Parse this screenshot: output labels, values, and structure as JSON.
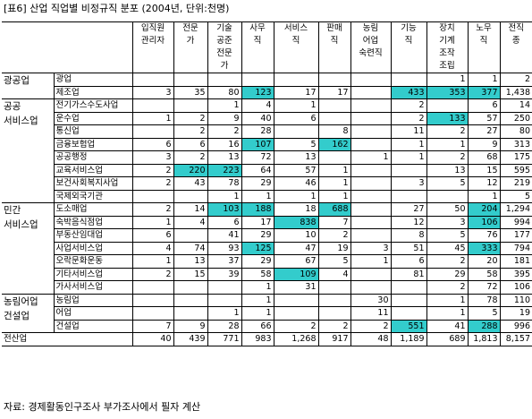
{
  "title": "[표6] 산업 직업별 비정규직 분포 (2004년, 단위:천명)",
  "source": "자료: 경제활동인구조사 부가조사에서 필자 계산",
  "columns": [
    "입직원\n관리자",
    "전문\n가",
    "기술\n공준\n전문\n가",
    "사무\n직",
    "서비스\n직",
    "판매\n직",
    "농림\n어업\n숙련직",
    "기능\n직",
    "장치\n기계\n조작\n조립",
    "노무\n직",
    "전직\n종"
  ],
  "highlight_color": "#33cccc",
  "groups": [
    {
      "name": "광공업",
      "rows": [
        {
          "label": "광업",
          "values": [
            "",
            "",
            "",
            "",
            "",
            "",
            "",
            "",
            "1",
            "1",
            "2"
          ],
          "hl": []
        },
        {
          "label": "제조업",
          "values": [
            "3",
            "35",
            "80",
            "123",
            "17",
            "17",
            "",
            "433",
            "353",
            "377",
            "1,438"
          ],
          "hl": [
            3,
            7,
            8,
            9
          ]
        }
      ]
    },
    {
      "name": "공공\n서비스업",
      "rows": [
        {
          "label": "전기가스수도사업",
          "values": [
            "",
            "",
            "1",
            "4",
            "1",
            "",
            "",
            "2",
            "",
            "6",
            "14"
          ],
          "hl": []
        },
        {
          "label": "운수업",
          "values": [
            "1",
            "2",
            "9",
            "40",
            "6",
            "",
            "",
            "2",
            "133",
            "57",
            "250"
          ],
          "hl": [
            8
          ]
        },
        {
          "label": "통신업",
          "values": [
            "",
            "2",
            "2",
            "28",
            "",
            "8",
            "",
            "11",
            "2",
            "27",
            "80"
          ],
          "hl": []
        },
        {
          "label": "금융보험업",
          "values": [
            "6",
            "6",
            "16",
            "107",
            "5",
            "162",
            "",
            "1",
            "1",
            "9",
            "313"
          ],
          "hl": [
            3,
            5
          ]
        },
        {
          "label": "공공행정",
          "values": [
            "3",
            "2",
            "13",
            "72",
            "13",
            "",
            "1",
            "1",
            "2",
            "68",
            "175"
          ],
          "hl": []
        },
        {
          "label": "교육서비스업",
          "values": [
            "2",
            "220",
            "223",
            "64",
            "57",
            "1",
            "",
            "",
            "13",
            "15",
            "595"
          ],
          "hl": [
            1,
            2
          ]
        },
        {
          "label": "보건사회복지사업",
          "values": [
            "2",
            "43",
            "78",
            "29",
            "46",
            "1",
            "",
            "3",
            "5",
            "12",
            "219"
          ],
          "hl": []
        },
        {
          "label": "국제외국기관",
          "values": [
            "",
            "",
            "1",
            "1",
            "1",
            "1",
            "",
            "",
            "",
            "1",
            "5"
          ],
          "hl": []
        }
      ]
    },
    {
      "name": "민간\n서비스업",
      "rows": [
        {
          "label": "도소매업",
          "values": [
            "2",
            "14",
            "103",
            "188",
            "18",
            "688",
            "",
            "27",
            "50",
            "204",
            "1,294"
          ],
          "hl": [
            2,
            3,
            5,
            9
          ]
        },
        {
          "label": "숙박음식점업",
          "values": [
            "1",
            "4",
            "6",
            "17",
            "838",
            "7",
            "",
            "12",
            "3",
            "106",
            "994"
          ],
          "hl": [
            4,
            9
          ]
        },
        {
          "label": "부동산임대업",
          "values": [
            "6",
            "",
            "41",
            "29",
            "10",
            "2",
            "",
            "8",
            "5",
            "76",
            "177"
          ],
          "hl": []
        },
        {
          "label": "사업서비스업",
          "values": [
            "4",
            "74",
            "93",
            "125",
            "47",
            "19",
            "3",
            "51",
            "45",
            "333",
            "794"
          ],
          "hl": [
            3,
            9
          ]
        },
        {
          "label": "오락문화운동",
          "values": [
            "1",
            "13",
            "37",
            "29",
            "67",
            "5",
            "1",
            "6",
            "2",
            "20",
            "181"
          ],
          "hl": []
        },
        {
          "label": "기타서비스업",
          "values": [
            "2",
            "15",
            "39",
            "58",
            "109",
            "4",
            "",
            "81",
            "29",
            "58",
            "395"
          ],
          "hl": [
            4
          ]
        },
        {
          "label": "가사서비스업",
          "values": [
            "",
            "",
            "",
            "1",
            "31",
            "",
            "",
            "",
            "2",
            "72",
            "106"
          ],
          "hl": []
        }
      ]
    },
    {
      "name": "농림어업\n건설업",
      "rows": [
        {
          "label": "농림업",
          "values": [
            "",
            "",
            "",
            "1",
            "",
            "",
            "30",
            "",
            "1",
            "78",
            "110"
          ],
          "hl": []
        },
        {
          "label": "어업",
          "values": [
            "",
            "",
            "1",
            "1",
            "",
            "",
            "11",
            "",
            "1",
            "5",
            "19"
          ],
          "hl": []
        },
        {
          "label": "건설업",
          "values": [
            "7",
            "9",
            "28",
            "66",
            "2",
            "2",
            "2",
            "551",
            "41",
            "288",
            "996"
          ],
          "hl": [
            7,
            9
          ]
        }
      ]
    }
  ],
  "total": {
    "label": "전산업",
    "values": [
      "40",
      "439",
      "771",
      "983",
      "1,268",
      "917",
      "48",
      "1,189",
      "689",
      "1,813",
      "8,157"
    ]
  }
}
